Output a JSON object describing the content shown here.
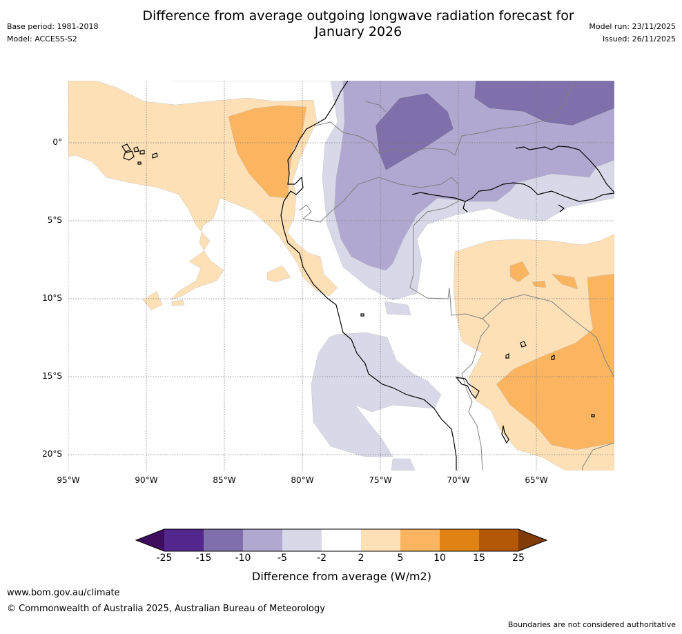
{
  "title_line1": "Difference from average outgoing longwave radiation forecast for",
  "title_line2": "January 2026",
  "meta": {
    "base_period": "Base period: 1981-2018",
    "model": "Model: ACCESS-S2",
    "model_run": "Model run: 23/11/2025",
    "issued": "Issued: 26/11/2025"
  },
  "map": {
    "lat_labels": [
      "0°",
      "5°S",
      "10°S",
      "15°S",
      "20°S"
    ],
    "lon_labels": [
      "95°W",
      "90°W",
      "85°W",
      "80°W",
      "75°W",
      "70°W",
      "65°W"
    ],
    "fill_colors": {
      "neg_15_10": "#7f6faa",
      "neg_10_5": "#b0a8d0",
      "neg_5_2": "#d8d8e9",
      "pos_2_5": "#fde0b6",
      "pos_5_10": "#fbb561",
      "coast": "#000000",
      "border": "#808080"
    }
  },
  "colorbar": {
    "title": "Difference from average (W/m2)",
    "ticks": [
      "-25",
      "-15",
      "-10",
      "-5",
      "-2",
      "2",
      "5",
      "10",
      "15",
      "25"
    ],
    "colors": [
      "#3f0d5e",
      "#54278f",
      "#7f6faa",
      "#b0a8d0",
      "#d8d8e9",
      "#ffffff",
      "#fde0b6",
      "#fbb561",
      "#e08214",
      "#b35806",
      "#7f3b08"
    ]
  },
  "footer": {
    "url": "www.bom.gov.au/climate",
    "copyright": "© Commonwealth of Australia 2025, Australian Bureau of Meteorology",
    "disclaimer": "Boundaries are not considered authoritative"
  }
}
